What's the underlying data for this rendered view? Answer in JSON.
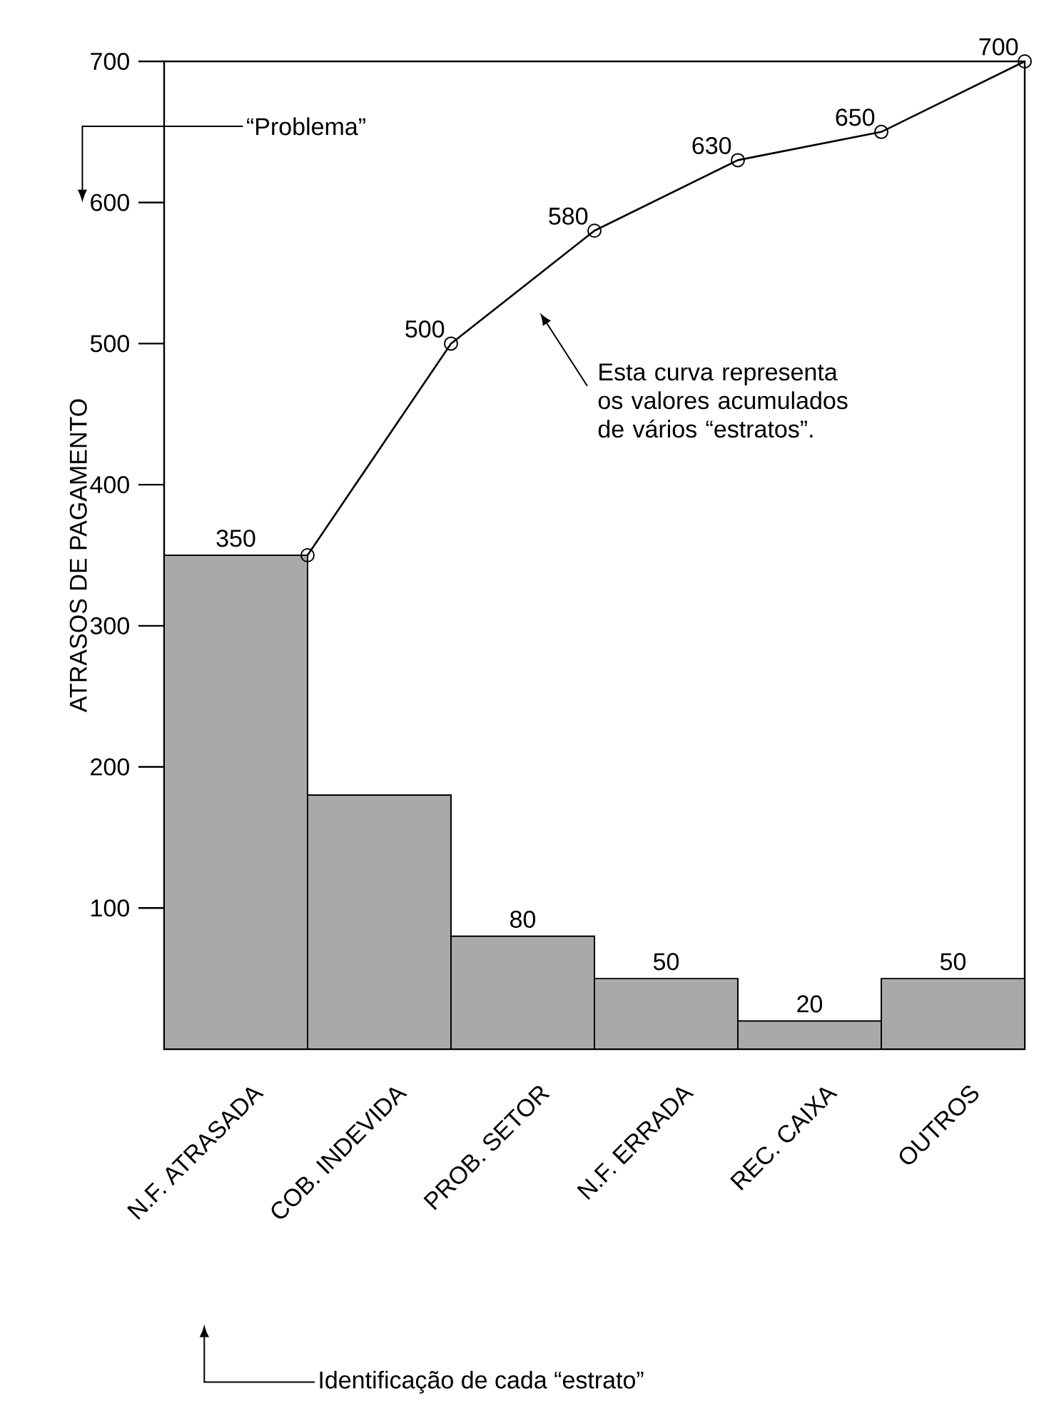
{
  "chart_data": {
    "type": "bar",
    "ylabel": "ATRASOS DE PAGAMENTO",
    "categories": [
      "N.F. ATRASADA",
      "COB. INDEVIDA",
      "PROB. SETOR",
      "N.F. ERRADA",
      "REC. CAIXA",
      "OUTROS"
    ],
    "ylim": [
      0,
      700
    ],
    "yticks": [
      100,
      200,
      300,
      400,
      500,
      600,
      700
    ],
    "series": [
      {
        "color": "#a9a9a9",
        "values": [
          350,
          180,
          80,
          50,
          20,
          50
        ],
        "value_labels": [
          "350",
          null,
          "80",
          "50",
          "20",
          "50"
        ]
      },
      {
        "type": "line",
        "color": "#000000",
        "marker": "circle",
        "values": [
          350,
          500,
          580,
          630,
          650,
          700
        ],
        "value_labels": [
          null,
          "500",
          "580",
          "630",
          "650",
          "700"
        ]
      }
    ],
    "annotations": [
      "“Problema”",
      "Esta curva representa os valores acumulados de vários “estratos”.",
      "Identificação de cada “estrato”"
    ]
  }
}
